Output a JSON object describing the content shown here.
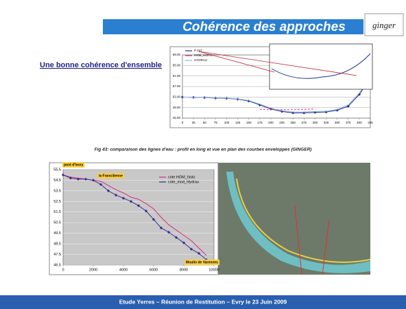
{
  "header": {
    "title": "Cohérence des approches",
    "logo": "ginger"
  },
  "subtitle": "Une bonne cohérence d'ensemble",
  "caption": "Fig 43: comparaison des lignes d'eau : profil en long et vue en plan des courbes enveloppes (GINGER)",
  "footer": "Etude Yerres – Réunion de Restitution – Evry le 23 Juin 2009",
  "chart_data": [
    {
      "type": "line",
      "x": [
        0,
        25,
        50,
        75,
        100,
        125,
        150,
        175,
        200,
        225,
        250,
        275,
        300,
        325,
        350,
        375,
        400,
        425
      ],
      "series": [
        {
          "name": "P 247",
          "color": "#1f2f8f",
          "values": [
            53,
            52.9,
            52.8,
            52.6,
            52.5,
            52.2,
            51.5,
            50,
            48.5,
            47.5,
            47,
            47,
            47.2,
            47.3,
            48,
            49.5,
            54,
            60
          ]
        },
        {
          "name": "HGM_HISTO",
          "color": "#e0307a",
          "values": [
            null,
            null,
            null,
            null,
            null,
            null,
            null,
            48.3,
            48.2,
            48.2,
            48.2,
            48.3,
            48.5,
            null,
            null,
            null,
            null,
            null
          ]
        },
        {
          "name": "HYDRAU",
          "color": "#8fb0e0",
          "values": [
            53,
            52.9,
            52.8,
            52.7,
            52.6,
            52.3,
            51.7,
            50.3,
            48.8,
            47.8,
            47.3,
            47.3,
            47.5,
            47.6,
            48.3,
            50,
            54.5,
            61
          ]
        }
      ],
      "xlim": [
        0,
        425
      ],
      "xticks": [
        0,
        25,
        50,
        75,
        100,
        125,
        150,
        175,
        200,
        225,
        250,
        275,
        300,
        325,
        350,
        375,
        400,
        425
      ],
      "ylim": [
        45,
        69
      ],
      "yticks": [
        {
          "value": 45,
          "label": "45.00"
        },
        {
          "value": 49,
          "label": "49.00"
        },
        {
          "value": 53,
          "label": "53.00"
        },
        {
          "value": 57,
          "label": "57.00"
        },
        {
          "value": 61,
          "label": "61.00"
        },
        {
          "value": 65,
          "label": "65.00"
        },
        {
          "value": 69,
          "label": "69.00"
        }
      ],
      "grid": true
    },
    {
      "type": "line",
      "x": [
        0,
        500,
        1000,
        1500,
        2000,
        2500,
        3000,
        3500,
        4000,
        4500,
        5000,
        5500,
        6000,
        6500,
        7000,
        7500,
        8000,
        8500,
        9000,
        9500
      ],
      "series": [
        {
          "name": "cote HGM_histo",
          "color": "#d0307f",
          "values": [
            55,
            54.8,
            54.7,
            54.6,
            54.5,
            54.4,
            54,
            53.6,
            53.3,
            52.9,
            52.7,
            52.3,
            51.8,
            51,
            50.3,
            49.8,
            49.3,
            48.8,
            48.1,
            47.4
          ]
        },
        {
          "name": "cote_mod_Hydrau",
          "color": "#3a2a8f",
          "values": [
            55,
            54.7,
            54.6,
            54.6,
            54.5,
            54.1,
            53.5,
            53.1,
            52.8,
            52.5,
            52.1,
            51.6,
            50.8,
            50,
            49.6,
            49.1,
            48.6,
            48,
            47.6,
            47
          ]
        }
      ],
      "xlim": [
        0,
        10000
      ],
      "xticks": [
        0,
        2000,
        4000,
        6000,
        8000,
        10000
      ],
      "ylim": [
        46.5,
        55.5
      ],
      "yticks": [
        46.5,
        47.5,
        48.5,
        49.5,
        50.5,
        51.5,
        52.5,
        53.5,
        54.5,
        55.5
      ],
      "annotations": [
        "pont d'Ivory",
        "la Francilienne",
        "Moulin de Varennes"
      ],
      "grid": true
    }
  ]
}
